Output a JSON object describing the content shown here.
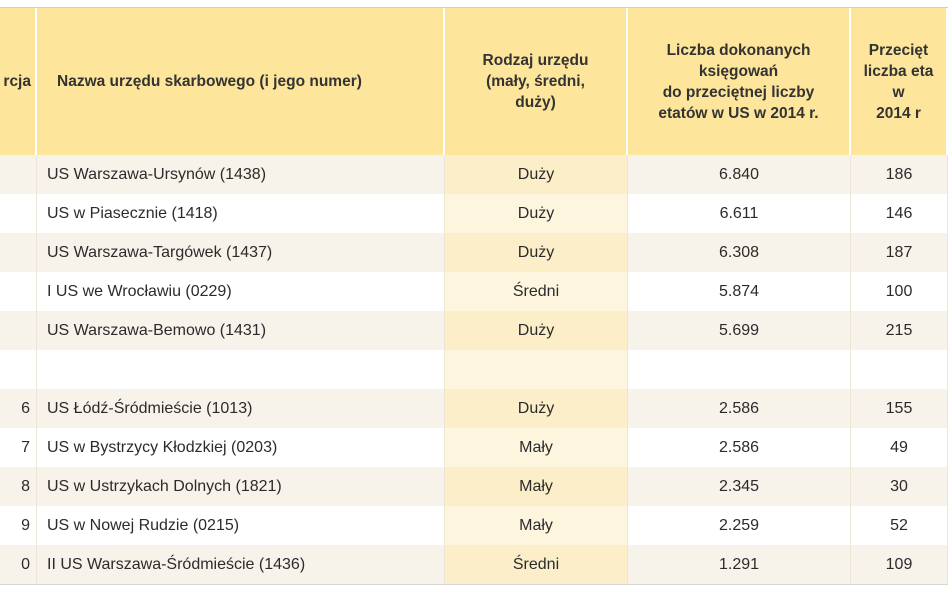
{
  "table": {
    "header": [
      [
        "rcja"
      ],
      [
        "Nazwa urzędu skarbowego (i jego numer)"
      ],
      [
        "Rodzaj urzędu",
        "(mały, średni,",
        "duży)"
      ],
      [
        "Liczba dokonanych",
        "księgowań",
        "do przeciętnej liczby",
        "etatów w US w 2014 r."
      ],
      [
        "Przecięt",
        "liczba eta",
        "w",
        "2014 r"
      ]
    ],
    "rows": [
      [
        null,
        "US Warszawa-Ursynów (1438)",
        "Duży",
        "6.840",
        "186"
      ],
      [
        null,
        "US w Piasecznie (1418)",
        "Duży",
        "6.611",
        "146"
      ],
      [
        null,
        "US Warszawa-Targówek (1437)",
        "Duży",
        "6.308",
        "187"
      ],
      [
        null,
        "I US we Wrocławiu (0229)",
        "Średni",
        "5.874",
        "100"
      ],
      [
        null,
        "US Warszawa-Bemowo (1431)",
        "Duży",
        "5.699",
        "215"
      ],
      [
        null,
        null,
        null,
        null,
        null
      ],
      [
        "6",
        "US Łódź-Śródmieście (1013)",
        "Duży",
        "2.586",
        "155"
      ],
      [
        "7",
        "US w Bystrzycy Kłodzkiej (0203)",
        "Mały",
        "2.586",
        "49"
      ],
      [
        "8",
        "US w Ustrzykach Dolnych (1821)",
        "Mały",
        "2.345",
        "30"
      ],
      [
        "9",
        "US w Nowej Rudzie (0215)",
        "Mały",
        "2.259",
        "52"
      ],
      [
        "0",
        "II US Warszawa-Śródmieście (1436)",
        "Średni",
        "1.291",
        "109"
      ]
    ]
  }
}
